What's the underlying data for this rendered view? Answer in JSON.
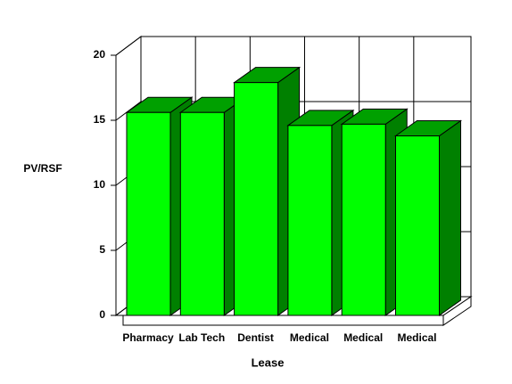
{
  "chart_data": {
    "type": "bar3d",
    "x_label": "Lease",
    "y_label": "PV/RSF",
    "categories": [
      "Pharmacy",
      "Lab Tech",
      "Dentist",
      "Medical",
      "Medical",
      "Medical"
    ],
    "values": [
      15.6,
      15.6,
      17.9,
      14.6,
      14.7,
      13.8
    ],
    "color": "#00ff00",
    "ylim": [
      0,
      20
    ],
    "yticks": [
      0,
      5,
      10,
      15,
      20
    ],
    "grid": true
  }
}
